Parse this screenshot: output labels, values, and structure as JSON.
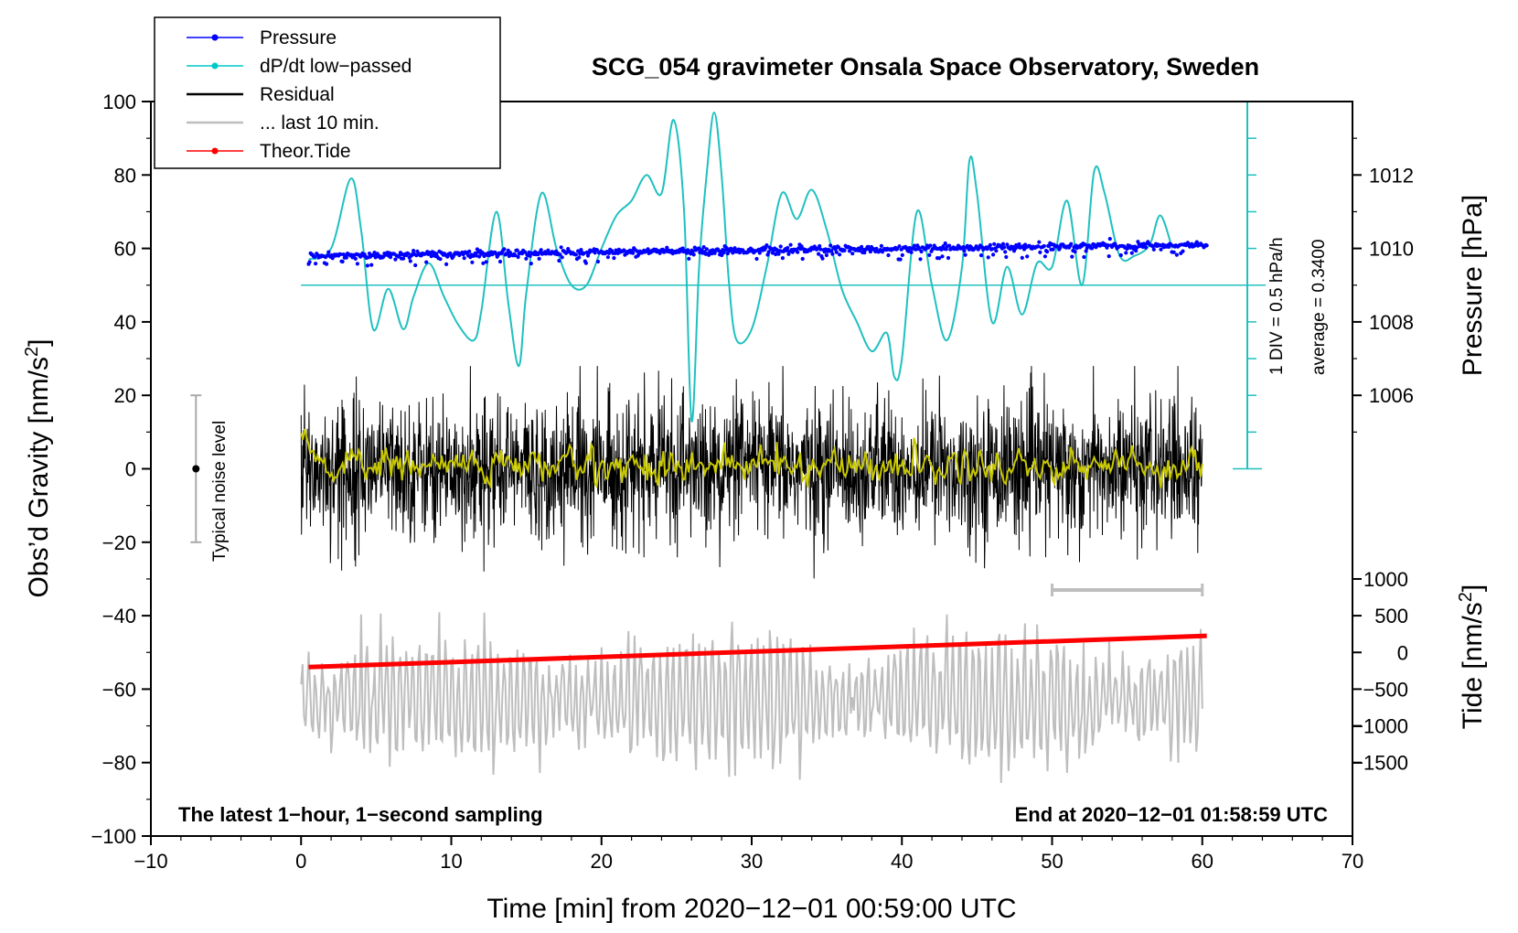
{
  "chart_data": {
    "type": "line",
    "title": "SCG_054 gravimeter Onsala Space Observatory, Sweden",
    "xlabel": "Time [min] from 2020−12−01 00:59:00 UTC",
    "ylabel_left": "Obs'd Gravity [nm/s2]",
    "ylabel_left_main": "Obs’d Gravity [nm/s",
    "ylabel_left_sup": "2",
    "ylabel_left_end": "]",
    "ylabel_right_top": "Pressure [hPa]",
    "ylabel_right_bottom_main": "Tide [nm/s",
    "ylabel_right_bottom_sup": "2",
    "ylabel_right_bottom_end": "]",
    "xlim": [
      -10,
      70
    ],
    "ylim": [
      -100,
      100
    ],
    "x_ticks": [
      "−10",
      "0",
      "10",
      "20",
      "30",
      "40",
      "50",
      "60",
      "70"
    ],
    "x_tick_values": [
      -10,
      0,
      10,
      20,
      30,
      40,
      50,
      60,
      70
    ],
    "y_ticks": [
      "100",
      "80",
      "60",
      "40",
      "20",
      "0",
      "−20",
      "−40",
      "−60",
      "−80",
      "−100"
    ],
    "y_tick_values": [
      100,
      80,
      60,
      40,
      20,
      0,
      -20,
      -40,
      -60,
      -80,
      -100
    ],
    "pressure_ticks": [
      "1012",
      "1010",
      "1008",
      "1006"
    ],
    "pressure_tick_values": [
      1012,
      1010,
      1008,
      1006
    ],
    "pressure_axis": {
      "gravity_at_1010": 60,
      "gravity_per_hpa": 10
    },
    "tide_ticks": [
      "1000",
      "500",
      "0",
      "−500",
      "−1000",
      "−1500"
    ],
    "tide_tick_values": [
      1000,
      500,
      0,
      -500,
      -1000,
      -1500
    ],
    "tide_axis": {
      "gravity_at_0": -50,
      "gravity_per_nms2": 0.02
    },
    "legend": [
      {
        "label": "Pressure",
        "color": "#0000ff",
        "marker": true
      },
      {
        "label": "dP/dt low−passed",
        "color": "#00c8c8",
        "marker": true
      },
      {
        "label": "Residual",
        "color": "#000000",
        "marker": false
      },
      {
        "label": "... last 10 min.",
        "color": "#bebebe",
        "marker": false
      },
      {
        "label": "Theor.Tide",
        "color": "#ff0000",
        "marker": true
      }
    ],
    "series": [
      {
        "name": "Pressure",
        "color": "#0000ff",
        "x_range": [
          0.5,
          60.3
        ],
        "y_start": 58,
        "y_end": 61
      },
      {
        "name": "dP/dt low−passed",
        "color": "#20c0c0",
        "x": [
          0.5,
          2.0,
          3.3,
          4.0,
          4.8,
          5.8,
          6.8,
          7.5,
          8.5,
          9.5,
          10.5,
          11.5,
          12.0,
          13.0,
          13.8,
          14.5,
          15.0,
          16.0,
          17.0,
          18.0,
          19.0,
          20.0,
          21.0,
          22.0,
          23.0,
          24.0,
          24.8,
          25.5,
          26.0,
          26.5,
          27.0,
          27.5,
          28.0,
          28.5,
          29.0,
          30.0,
          31.0,
          32.0,
          33.0,
          34.0,
          35.0,
          36.0,
          37.0,
          38.0,
          39.0,
          39.5,
          40.0,
          41.0,
          42.0,
          43.0,
          44.0,
          44.5,
          45.0,
          46.0,
          47.0,
          48.0,
          49.0,
          50.0,
          51.0,
          52.0,
          52.8,
          53.5,
          54.5,
          55.5,
          56.5,
          57.2,
          58.0
        ],
        "y": [
          57,
          60,
          79,
          65,
          38,
          49,
          38,
          47,
          56,
          47,
          39,
          35,
          43,
          70,
          45,
          28,
          48,
          75,
          60,
          50,
          50,
          60,
          69,
          73,
          80,
          75,
          95,
          70,
          13,
          55,
          80,
          97,
          80,
          50,
          35,
          38,
          55,
          75,
          68,
          76,
          65,
          49,
          40,
          32,
          37,
          25,
          30,
          70,
          50,
          35,
          55,
          84,
          75,
          40,
          55,
          42,
          56,
          55,
          73,
          50,
          81,
          75,
          58,
          58,
          61,
          69,
          60
        ]
      },
      {
        "name": "dP/dt zero line",
        "color": "#20c0c0",
        "y": 50,
        "x_range": [
          0,
          63
        ]
      },
      {
        "name": "Residual",
        "color": "#000000",
        "x_range": [
          0,
          60
        ],
        "center": 0,
        "typical_amplitude": 12,
        "max": 28,
        "min": -37
      },
      {
        "name": "Residual smoothed",
        "color": "#c8c800",
        "x_range": [
          0,
          60
        ],
        "center": 1
      },
      {
        "name": "... last 10 min.",
        "color": "#bebebe",
        "x_range": [
          0,
          60
        ],
        "center": -63,
        "max": -37,
        "min": -87
      },
      {
        "name": "Theor.Tide",
        "color": "#ff0000",
        "x": [
          0.5,
          60.3
        ],
        "y": [
          -54,
          -45.5
        ]
      }
    ],
    "noise_bar": {
      "label": "Typical noise level",
      "x": -7,
      "center": 0,
      "half_range": 20
    },
    "ten_min_bar": {
      "x": [
        50,
        60
      ],
      "y": -33
    },
    "pressure_scale": {
      "div_label": "1 DIV = 0.5 hPa/h",
      "average_label": "average = 0.3400",
      "x": 63,
      "y_top": 100,
      "y_bottom": 0,
      "div_step": 10
    },
    "note_left": "The latest 1−hour, 1−second sampling",
    "note_right": "End at 2020−12−01 01:58:59 UTC"
  }
}
